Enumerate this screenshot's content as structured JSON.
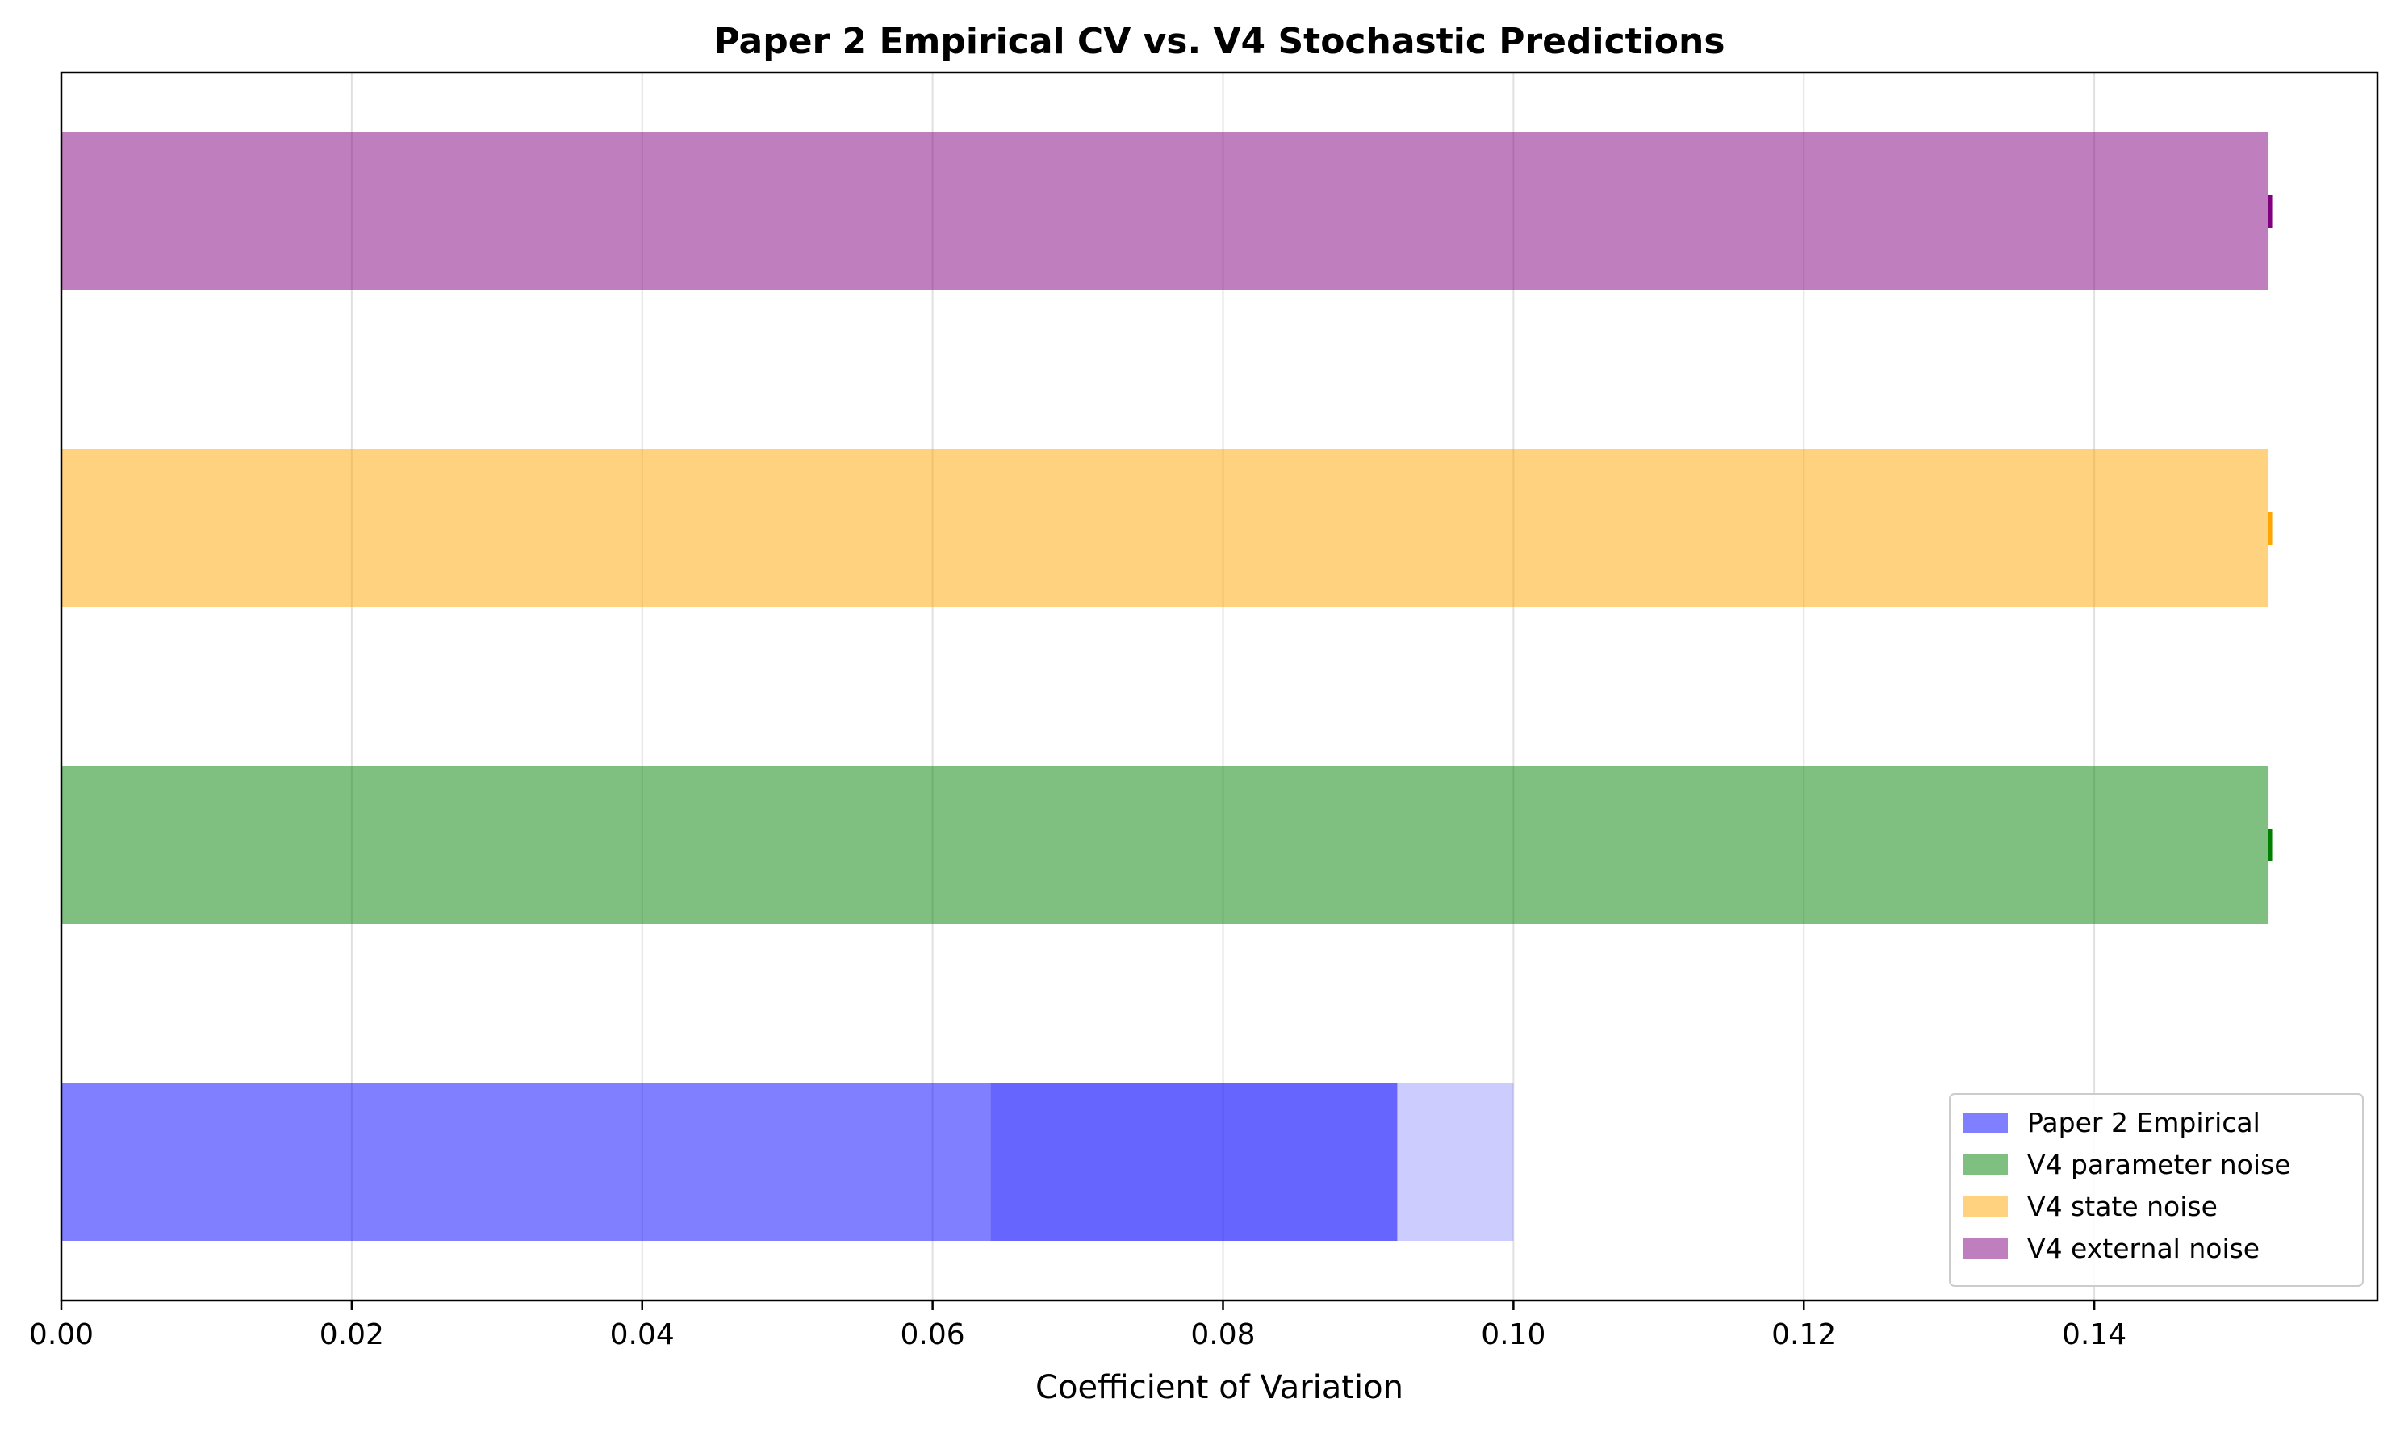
{
  "chart_data": {
    "type": "bar",
    "orientation": "horizontal",
    "title": "Paper 2 Empirical CV vs. V4 Stochastic Predictions",
    "xlabel": "Coefficient of Variation",
    "ylabel": "",
    "xlim": [
      0.0,
      0.1595
    ],
    "xticks": [
      0.0,
      0.02,
      0.04,
      0.06,
      0.08,
      0.1,
      0.12,
      0.14
    ],
    "xtick_labels": [
      "0.00",
      "0.02",
      "0.04",
      "0.06",
      "0.08",
      "0.10",
      "0.12",
      "0.14"
    ],
    "grid": "vertical",
    "legend_position": "lower-right",
    "rows": [
      {
        "name": "Paper 2 Empirical",
        "color": "#0000ff",
        "segments": [
          {
            "start": 0.0,
            "end": 0.064,
            "alpha": 0.5
          },
          {
            "start": 0.064,
            "end": 0.092,
            "alpha": 0.6
          },
          {
            "start": 0.092,
            "end": 0.1,
            "alpha": 0.2
          }
        ]
      },
      {
        "name": "V4 parameter noise",
        "color": "#008000",
        "value": 0.152,
        "marker_color": "#008000",
        "segments": [
          {
            "start": 0.0,
            "end": 0.152,
            "alpha": 0.5
          }
        ]
      },
      {
        "name": "V4 state noise",
        "color": "#ffa500",
        "value": 0.152,
        "marker_color": "#ffa500",
        "segments": [
          {
            "start": 0.0,
            "end": 0.152,
            "alpha": 0.5
          }
        ]
      },
      {
        "name": "V4 external noise",
        "color": "#800080",
        "value": 0.152,
        "marker_color": "#800080",
        "segments": [
          {
            "start": 0.0,
            "end": 0.152,
            "alpha": 0.5
          }
        ]
      }
    ],
    "legend": [
      {
        "label": "Paper 2 Empirical",
        "color": "#0000ff"
      },
      {
        "label": "V4 parameter noise",
        "color": "#008000"
      },
      {
        "label": "V4 state noise",
        "color": "#ffa500"
      },
      {
        "label": "V4 external noise",
        "color": "#800080"
      }
    ]
  }
}
